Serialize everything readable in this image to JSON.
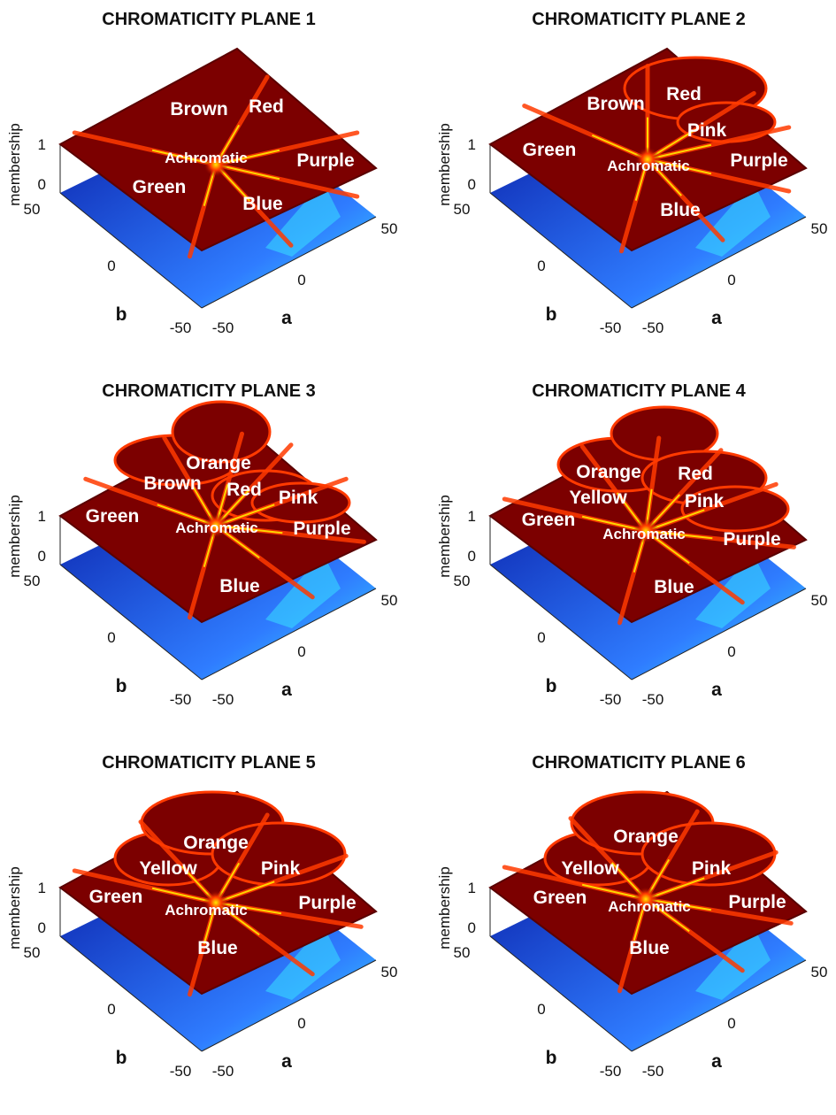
{
  "colors": {
    "floor_dark": "#0a1fa8",
    "floor_light": "#2f7cff",
    "plateau": "#7c0000",
    "plateau_edge": "#5a0000",
    "ridge_hot": "#ff3a00",
    "ridge_yellow": "#ffe800",
    "ridge_cyan": "#38e0ff",
    "label": "#ffffff"
  },
  "chart_data": [
    {
      "type": "surface",
      "title": "CHROMATICITY PLANE 1",
      "xlabel": "a",
      "ylabel": "b",
      "zlabel": "membership",
      "xlim": [
        -50,
        50
      ],
      "ylim": [
        -50,
        50
      ],
      "zlim": [
        0,
        1
      ],
      "xticks": [
        "-50",
        "0",
        "50"
      ],
      "yticks": [
        "-50",
        "0",
        "50"
      ],
      "zticks": [
        "0",
        "1"
      ],
      "regions": [
        "Brown",
        "Red",
        "Achromatic",
        "Purple",
        "Green",
        "Blue"
      ]
    },
    {
      "type": "surface",
      "title": "CHROMATICITY PLANE 2",
      "xlabel": "a",
      "ylabel": "b",
      "zlabel": "membership",
      "xlim": [
        -50,
        50
      ],
      "ylim": [
        -50,
        50
      ],
      "zlim": [
        0,
        1
      ],
      "xticks": [
        "-50",
        "0",
        "50"
      ],
      "yticks": [
        "-50",
        "0",
        "50"
      ],
      "zticks": [
        "0",
        "1"
      ],
      "regions": [
        "Brown",
        "Red",
        "Pink",
        "Green",
        "Achromatic",
        "Purple",
        "Blue"
      ]
    },
    {
      "type": "surface",
      "title": "CHROMATICITY PLANE 3",
      "xlabel": "a",
      "ylabel": "b",
      "zlabel": "membership",
      "xlim": [
        -50,
        50
      ],
      "ylim": [
        -50,
        50
      ],
      "zlim": [
        0,
        1
      ],
      "xticks": [
        "-50",
        "0",
        "50"
      ],
      "yticks": [
        "-50",
        "0",
        "50"
      ],
      "zticks": [
        "0",
        "1"
      ],
      "regions": [
        "Orange",
        "Brown",
        "Red",
        "Pink",
        "Green",
        "Achromatic",
        "Purple",
        "Blue"
      ]
    },
    {
      "type": "surface",
      "title": "CHROMATICITY PLANE 4",
      "xlabel": "a",
      "ylabel": "b",
      "zlabel": "membership",
      "xlim": [
        -50,
        50
      ],
      "ylim": [
        -50,
        50
      ],
      "zlim": [
        0,
        1
      ],
      "xticks": [
        "-50",
        "0",
        "50"
      ],
      "yticks": [
        "-50",
        "0",
        "50"
      ],
      "zticks": [
        "0",
        "1"
      ],
      "regions": [
        "Orange",
        "Red",
        "Yellow",
        "Pink",
        "Green",
        "Achromatic",
        "Purple",
        "Blue"
      ]
    },
    {
      "type": "surface",
      "title": "CHROMATICITY PLANE 5",
      "xlabel": "a",
      "ylabel": "b",
      "zlabel": "membership",
      "xlim": [
        -50,
        50
      ],
      "ylim": [
        -50,
        50
      ],
      "zlim": [
        0,
        1
      ],
      "xticks": [
        "-50",
        "0",
        "50"
      ],
      "yticks": [
        "-50",
        "0",
        "50"
      ],
      "zticks": [
        "0",
        "1"
      ],
      "regions": [
        "Orange",
        "Yellow",
        "Pink",
        "Green",
        "Achromatic",
        "Purple",
        "Blue"
      ]
    },
    {
      "type": "surface",
      "title": "CHROMATICITY PLANE 6",
      "xlabel": "a",
      "ylabel": "b",
      "zlabel": "membership",
      "xlim": [
        -50,
        50
      ],
      "ylim": [
        -50,
        50
      ],
      "zlim": [
        0,
        1
      ],
      "xticks": [
        "-50",
        "0",
        "50"
      ],
      "yticks": [
        "-50",
        "0",
        "50"
      ],
      "zticks": [
        "0",
        "1"
      ],
      "regions": [
        "Orange",
        "Yellow",
        "Pink",
        "Green",
        "Achromatic",
        "Purple",
        "Blue"
      ]
    }
  ]
}
